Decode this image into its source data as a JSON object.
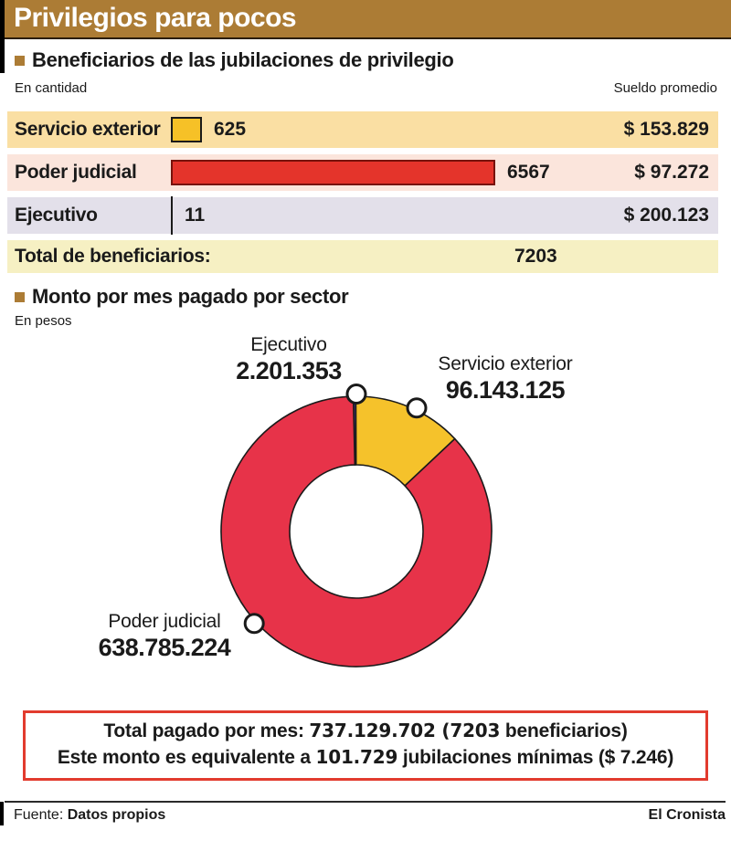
{
  "header": {
    "title": "Privilegios para pocos"
  },
  "colors": {
    "header_bg": "#AC7C35",
    "bullet": "#AC7C35",
    "text": "#1A1A1A",
    "box_border": "#E23B2E"
  },
  "section1": {
    "title": "Beneficiarios de las jubilaciones de privilegio",
    "left_axis_label": "En cantidad",
    "right_axis_label": "Sueldo promedio",
    "rows": [
      {
        "label": "Servicio exterior",
        "count": "625",
        "avg_salary": "$ 153.829",
        "bg": "#FADFA3"
      },
      {
        "label": "Poder judicial",
        "count": "6567",
        "avg_salary": "$ 97.272",
        "bg": "#FBE5DC"
      },
      {
        "label": "Ejecutivo",
        "count": "11",
        "avg_salary": "$ 200.123",
        "bg": "#E3E0EA"
      }
    ],
    "total_label": "Total de beneficiarios:",
    "total_value": "7203",
    "total_bg": "#F6F0C3"
  },
  "section2": {
    "title": "Monto por mes pagado por sector",
    "unit_label": "En pesos"
  },
  "chart_data": [
    {
      "type": "bar",
      "title": "Beneficiarios de las jubilaciones de privilegio",
      "categories": [
        "Servicio exterior",
        "Poder judicial",
        "Ejecutivo"
      ],
      "values": [
        625,
        6567,
        11
      ],
      "avg_salary_values": [
        153829,
        97272,
        200123
      ],
      "total_beneficiaries": 7203,
      "colors": [
        "#F6C127",
        "#E4342B",
        "#1A1A1A"
      ],
      "bar_border_colors": [
        "#1A1A1A",
        "#77120B",
        "none"
      ],
      "orientation": "horizontal",
      "xlabel": "En cantidad",
      "grid": false
    },
    {
      "type": "pie",
      "subtype": "donut",
      "title": "Monto por mes pagado por sector",
      "unit": "En pesos",
      "labels": [
        "Ejecutivo",
        "Servicio exterior",
        "Poder judicial"
      ],
      "values": [
        2201353,
        96143125,
        638785224
      ],
      "display_values": [
        "2.201.353",
        "96.143.125",
        "638.785.224"
      ],
      "colors": [
        "#4A3A8C",
        "#F5C22B",
        "#E73349"
      ],
      "slice_ids": [
        "ejecutivo",
        "servicio-exterior",
        "poder-judicial"
      ],
      "total": 737129702,
      "start_angle_deg": -1.3,
      "marker_angles_deg": [
        0,
        26,
        228
      ],
      "legend_position": "callout-labels"
    }
  ],
  "summary": {
    "l1a": "Total pagado por mes: ",
    "l1b": "737.129.702 (7203",
    "l1c": " beneficiarios)",
    "l2a": "Este monto es equivalente a ",
    "l2b": "101.729",
    "l2c": " jubilaciones mínimas ($ 7.246)"
  },
  "footer": {
    "source_label": "Fuente: ",
    "source_value": "Datos propios",
    "credit": "El Cronista"
  }
}
